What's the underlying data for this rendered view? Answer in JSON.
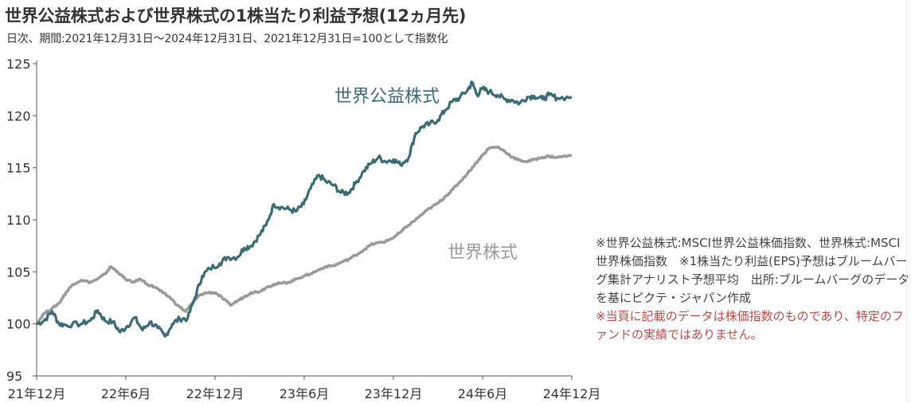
{
  "title": "世界公益株式および世界株式の1株当たり利益予想(12ヵ月先)",
  "subtitle": "日次、期間:2021年12月31日〜2024年12月31日、2021年12月31日=100として指数化",
  "notes": {
    "source": "※世界公益株式:MSCI世界公益株価指数、世界株式:MSCI世界株価指数　※1株当たり利益(EPS)予想はブルームバーグ集計アナリスト予想平均　出所:ブルームバーグのデータを基にピクテ・ジャパン作成",
    "disclaimer": "※当頁に記載のデータは株価指数のものであり、特定のファンドの実績ではありません。"
  },
  "colors": {
    "utilities": "#3b6b73",
    "world": "#9a9a9a",
    "disclaimer": "#b94a48"
  },
  "chart_data": {
    "type": "line",
    "x_ticks": [
      "21年12月",
      "22年6月",
      "22年12月",
      "23年6月",
      "23年12月",
      "24年6月",
      "24年12月"
    ],
    "ylim": [
      95,
      125
    ],
    "y_ticks": [
      95,
      100,
      105,
      110,
      115,
      120,
      125
    ],
    "series": [
      {
        "name": "世界公益株式",
        "color": "#3b6b73",
        "points": [
          [
            "2021-12-31",
            100.0
          ],
          [
            "2022-01-15",
            100.3
          ],
          [
            "2022-02-01",
            101.2
          ],
          [
            "2022-02-15",
            100.0
          ],
          [
            "2022-03-01",
            99.9
          ],
          [
            "2022-04-01",
            100.0
          ],
          [
            "2022-04-20",
            100.3
          ],
          [
            "2022-05-05",
            101.3
          ],
          [
            "2022-05-20",
            100.3
          ],
          [
            "2022-06-05",
            100.2
          ],
          [
            "2022-06-20",
            99.2
          ],
          [
            "2022-07-05",
            99.8
          ],
          [
            "2022-07-20",
            100.6
          ],
          [
            "2022-08-05",
            99.4
          ],
          [
            "2022-08-20",
            100.2
          ],
          [
            "2022-09-05",
            99.6
          ],
          [
            "2022-09-20",
            98.8
          ],
          [
            "2022-10-05",
            100.0
          ],
          [
            "2022-10-20",
            100.5
          ],
          [
            "2022-11-05",
            100.5
          ],
          [
            "2022-11-20",
            102.5
          ],
          [
            "2022-12-05",
            104.6
          ],
          [
            "2022-12-20",
            105.3
          ],
          [
            "2023-01-10",
            105.8
          ],
          [
            "2023-01-25",
            106.4
          ],
          [
            "2023-02-15",
            106.4
          ],
          [
            "2023-03-01",
            107.3
          ],
          [
            "2023-03-15",
            107.5
          ],
          [
            "2023-04-01",
            108.5
          ],
          [
            "2023-04-15",
            109.5
          ],
          [
            "2023-05-01",
            111.5
          ],
          [
            "2023-05-15",
            111.2
          ],
          [
            "2023-06-01",
            111.0
          ],
          [
            "2023-06-15",
            110.8
          ],
          [
            "2023-07-01",
            111.5
          ],
          [
            "2023-07-15",
            113.0
          ],
          [
            "2023-08-01",
            114.3
          ],
          [
            "2023-08-15",
            113.7
          ],
          [
            "2023-09-01",
            113.3
          ],
          [
            "2023-09-15",
            112.6
          ],
          [
            "2023-10-01",
            112.6
          ],
          [
            "2023-10-15",
            113.5
          ],
          [
            "2023-11-01",
            114.7
          ],
          [
            "2023-11-15",
            115.4
          ],
          [
            "2023-12-01",
            116.0
          ],
          [
            "2023-12-15",
            115.6
          ],
          [
            "2024-01-01",
            115.8
          ],
          [
            "2024-01-15",
            115.3
          ],
          [
            "2024-02-01",
            116.0
          ],
          [
            "2024-02-15",
            118.3
          ],
          [
            "2024-03-01",
            119.0
          ],
          [
            "2024-03-15",
            119.2
          ],
          [
            "2024-04-01",
            119.6
          ],
          [
            "2024-04-15",
            120.5
          ],
          [
            "2024-05-01",
            121.4
          ],
          [
            "2024-05-15",
            121.7
          ],
          [
            "2024-06-01",
            122.5
          ],
          [
            "2024-06-10",
            123.2
          ],
          [
            "2024-06-20",
            122.0
          ],
          [
            "2024-07-01",
            122.6
          ],
          [
            "2024-07-15",
            122.3
          ],
          [
            "2024-08-01",
            122.0
          ],
          [
            "2024-08-15",
            121.6
          ],
          [
            "2024-09-01",
            121.5
          ],
          [
            "2024-09-15",
            121.2
          ],
          [
            "2024-10-01",
            121.8
          ],
          [
            "2024-10-15",
            121.9
          ],
          [
            "2024-11-01",
            121.6
          ],
          [
            "2024-11-15",
            122.0
          ],
          [
            "2024-12-01",
            121.7
          ],
          [
            "2024-12-31",
            121.8
          ]
        ]
      },
      {
        "name": "世界株式",
        "color": "#9a9a9a",
        "points": [
          [
            "2021-12-31",
            100.0
          ],
          [
            "2022-01-15",
            101.0
          ],
          [
            "2022-02-01",
            101.5
          ],
          [
            "2022-02-15",
            102.0
          ],
          [
            "2022-03-01",
            103.0
          ],
          [
            "2022-03-15",
            103.8
          ],
          [
            "2022-04-01",
            104.2
          ],
          [
            "2022-04-20",
            104.0
          ],
          [
            "2022-05-05",
            104.3
          ],
          [
            "2022-05-20",
            104.8
          ],
          [
            "2022-06-01",
            105.5
          ],
          [
            "2022-06-15",
            105.0
          ],
          [
            "2022-07-01",
            104.3
          ],
          [
            "2022-07-15",
            104.0
          ],
          [
            "2022-08-01",
            104.3
          ],
          [
            "2022-08-15",
            103.8
          ],
          [
            "2022-09-01",
            103.5
          ],
          [
            "2022-09-15",
            103.0
          ],
          [
            "2022-10-01",
            102.5
          ],
          [
            "2022-10-15",
            101.8
          ],
          [
            "2022-11-01",
            101.2
          ],
          [
            "2022-11-15",
            102.0
          ],
          [
            "2022-12-01",
            102.8
          ],
          [
            "2022-12-15",
            103.0
          ],
          [
            "2023-01-01",
            103.0
          ],
          [
            "2023-01-15",
            102.5
          ],
          [
            "2023-02-01",
            101.8
          ],
          [
            "2023-02-15",
            102.2
          ],
          [
            "2023-03-01",
            102.6
          ],
          [
            "2023-03-15",
            103.0
          ],
          [
            "2023-04-01",
            103.1
          ],
          [
            "2023-04-15",
            103.5
          ],
          [
            "2023-05-01",
            103.8
          ],
          [
            "2023-05-15",
            103.9
          ],
          [
            "2023-06-01",
            104.0
          ],
          [
            "2023-06-15",
            104.3
          ],
          [
            "2023-07-01",
            104.6
          ],
          [
            "2023-07-15",
            104.8
          ],
          [
            "2023-08-01",
            105.2
          ],
          [
            "2023-08-15",
            105.5
          ],
          [
            "2023-09-01",
            105.6
          ],
          [
            "2023-09-15",
            105.9
          ],
          [
            "2023-10-01",
            106.2
          ],
          [
            "2023-10-15",
            106.6
          ],
          [
            "2023-11-01",
            107.1
          ],
          [
            "2023-11-15",
            107.6
          ],
          [
            "2023-12-01",
            107.8
          ],
          [
            "2023-12-15",
            107.9
          ],
          [
            "2024-01-01",
            108.3
          ],
          [
            "2024-01-15",
            108.8
          ],
          [
            "2024-02-01",
            109.5
          ],
          [
            "2024-02-15",
            110.0
          ],
          [
            "2024-03-01",
            110.6
          ],
          [
            "2024-03-15",
            111.1
          ],
          [
            "2024-04-01",
            111.6
          ],
          [
            "2024-04-15",
            112.2
          ],
          [
            "2024-05-01",
            112.9
          ],
          [
            "2024-05-15",
            113.6
          ],
          [
            "2024-06-01",
            114.5
          ],
          [
            "2024-06-15",
            115.3
          ],
          [
            "2024-07-01",
            116.2
          ],
          [
            "2024-07-15",
            116.9
          ],
          [
            "2024-08-01",
            117.0
          ],
          [
            "2024-08-15",
            116.6
          ],
          [
            "2024-09-01",
            116.0
          ],
          [
            "2024-09-15",
            115.7
          ],
          [
            "2024-10-01",
            115.6
          ],
          [
            "2024-10-15",
            115.8
          ],
          [
            "2024-11-01",
            116.0
          ],
          [
            "2024-11-15",
            116.1
          ],
          [
            "2024-12-01",
            116.0
          ],
          [
            "2024-12-31",
            116.2
          ]
        ]
      }
    ],
    "grid": false
  }
}
